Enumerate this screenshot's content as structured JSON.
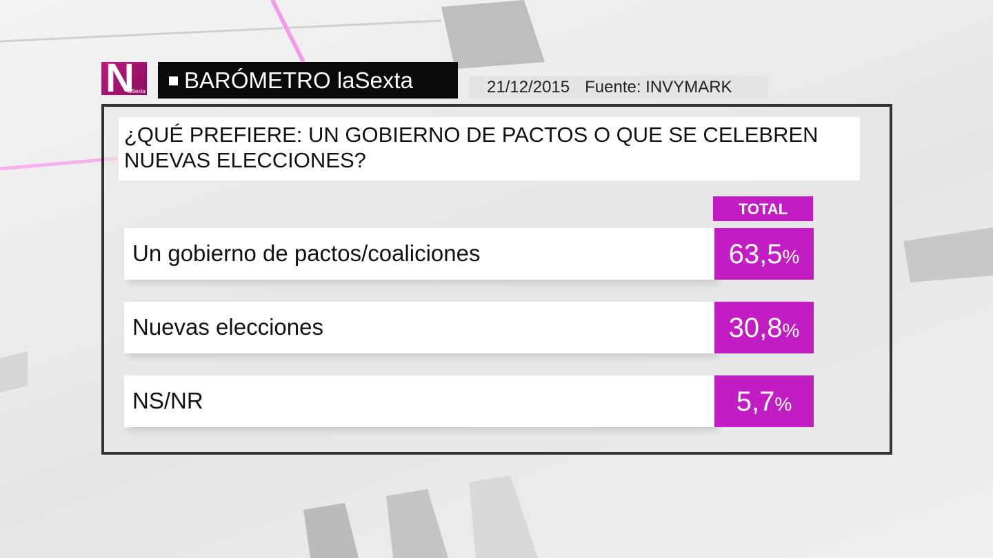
{
  "header": {
    "logo_letter": "N",
    "logo_sub": "laSexta",
    "title": "BARÓMETRO laSexta",
    "date": "21/12/2015",
    "source": "Fuente: INVYMARK"
  },
  "question": "¿QUÉ PREFIERE: UN GOBIERNO DE PACTOS O QUE SE CELEBREN NUEVAS ELECCIONES?",
  "table": {
    "column_header": "TOTAL",
    "rows": [
      {
        "label": "Un gobierno de pactos/coaliciones",
        "value": "63,5",
        "unit": "%"
      },
      {
        "label": "Nuevas elecciones",
        "value": "30,8",
        "unit": "%"
      },
      {
        "label": "NS/NR",
        "value": "5,7",
        "unit": "%"
      }
    ]
  }
}
